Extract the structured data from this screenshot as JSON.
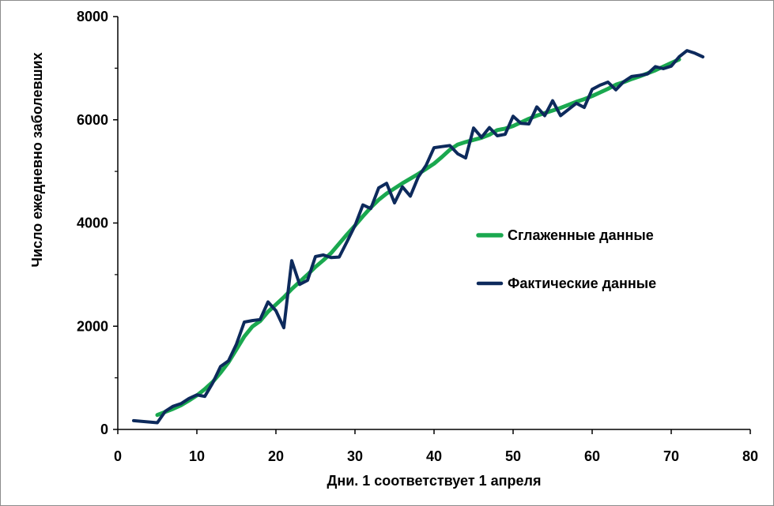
{
  "chart_data": {
    "type": "line",
    "title": "",
    "xlabel": "Дни.  1 соответствует 1 апреля",
    "ylabel": "Число ежедневно заболевших",
    "xlim": [
      0,
      80
    ],
    "ylim": [
      0,
      8000
    ],
    "xticks": [
      0,
      10,
      20,
      30,
      40,
      50,
      60,
      70,
      80
    ],
    "yticks": [
      0,
      2000,
      4000,
      6000,
      8000
    ],
    "grid": false,
    "legend_position": "center-right",
    "series": [
      {
        "name": "Сглаженные данные",
        "color": "#1aa84f",
        "x": [
          5,
          6,
          7,
          8,
          9,
          10,
          11,
          12,
          13,
          14,
          15,
          16,
          17,
          18,
          19,
          20,
          21,
          22,
          23,
          24,
          25,
          26,
          27,
          28,
          29,
          30,
          31,
          32,
          33,
          34,
          35,
          36,
          37,
          38,
          39,
          40,
          41,
          42,
          43,
          44,
          45,
          46,
          47,
          48,
          49,
          50,
          51,
          52,
          53,
          54,
          55,
          56,
          57,
          58,
          59,
          60,
          61,
          62,
          63,
          64,
          65,
          66,
          67,
          68,
          69,
          70,
          71
        ],
        "values": [
          280,
          340,
          400,
          470,
          560,
          660,
          780,
          920,
          1100,
          1300,
          1550,
          1800,
          1990,
          2100,
          2280,
          2420,
          2560,
          2720,
          2860,
          3000,
          3150,
          3280,
          3420,
          3600,
          3780,
          3950,
          4130,
          4300,
          4450,
          4570,
          4670,
          4770,
          4860,
          4950,
          5050,
          5150,
          5280,
          5420,
          5520,
          5570,
          5610,
          5650,
          5710,
          5800,
          5830,
          5880,
          5950,
          6020,
          6080,
          6130,
          6180,
          6230,
          6290,
          6350,
          6400,
          6460,
          6530,
          6600,
          6680,
          6730,
          6790,
          6840,
          6900,
          6960,
          7030,
          7100,
          7170
        ]
      },
      {
        "name": "Фактические данные",
        "color": "#0d2a5c",
        "x": [
          2,
          5,
          6,
          7,
          8,
          9,
          10,
          11,
          12,
          13,
          14,
          15,
          16,
          17,
          18,
          19,
          20,
          21,
          22,
          23,
          24,
          25,
          26,
          27,
          28,
          29,
          30,
          31,
          32,
          33,
          34,
          35,
          36,
          37,
          38,
          39,
          40,
          41,
          42,
          43,
          44,
          45,
          46,
          47,
          48,
          49,
          50,
          51,
          52,
          53,
          54,
          55,
          56,
          57,
          58,
          59,
          60,
          61,
          62,
          63,
          64,
          65,
          66,
          67,
          68,
          69,
          70,
          71,
          72,
          73,
          74
        ],
        "values": [
          170,
          130,
          350,
          450,
          500,
          600,
          670,
          640,
          900,
          1220,
          1330,
          1650,
          2080,
          2110,
          2130,
          2470,
          2300,
          1970,
          3270,
          2810,
          2890,
          3350,
          3380,
          3330,
          3340,
          3640,
          3950,
          4350,
          4280,
          4680,
          4770,
          4390,
          4700,
          4520,
          4890,
          5120,
          5460,
          5480,
          5500,
          5340,
          5260,
          5840,
          5660,
          5850,
          5690,
          5720,
          6070,
          5930,
          5920,
          6250,
          6080,
          6370,
          6080,
          6200,
          6320,
          6240,
          6590,
          6670,
          6730,
          6580,
          6740,
          6840,
          6860,
          6890,
          7030,
          6990,
          7040,
          7220,
          7340,
          7290,
          7220
        ]
      }
    ]
  }
}
